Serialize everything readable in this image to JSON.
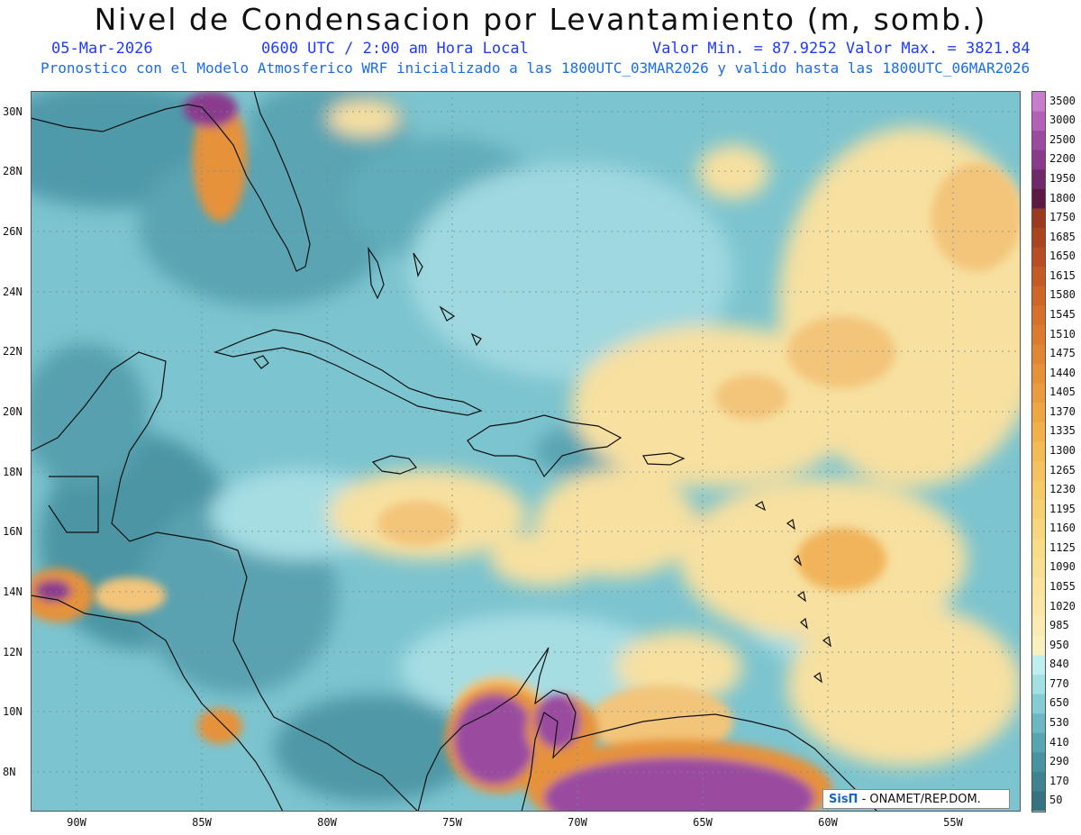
{
  "title": "Nivel de Condensacion por Levantamiento (m, somb.)",
  "date": "05-Mar-2026",
  "time": "0600 UTC / 2:00 am Hora Local",
  "minmax": "Valor Min. = 87.9252  Valor Max. = 3821.84",
  "forecast_note": "Pronostico con el Modelo Atmosferico WRF inicializado a las 1800UTC_03MAR2026 y valido hasta las  1800UTC_06MAR2026",
  "lat_labels": [
    "30N",
    "28N",
    "26N",
    "24N",
    "22N",
    "20N",
    "18N",
    "16N",
    "14N",
    "12N",
    "10N",
    "8N"
  ],
  "lon_labels": [
    "90W",
    "85W",
    "80W",
    "75W",
    "70W",
    "65W",
    "60W",
    "55W"
  ],
  "colorbar": {
    "labels": [
      "3500",
      "3000",
      "2500",
      "2200",
      "1950",
      "1800",
      "1750",
      "1685",
      "1650",
      "1615",
      "1580",
      "1545",
      "1510",
      "1475",
      "1440",
      "1405",
      "1370",
      "1335",
      "1300",
      "1265",
      "1230",
      "1195",
      "1160",
      "1125",
      "1090",
      "1055",
      "1020",
      "985",
      "950",
      "840",
      "770",
      "650",
      "530",
      "410",
      "290",
      "170",
      "50"
    ],
    "colors": [
      "#c77dcc",
      "#b261b7",
      "#9a4ba0",
      "#8a3a8c",
      "#6f2a6b",
      "#5a1a44",
      "#9b3a1f",
      "#a9441f",
      "#b84f22",
      "#c45a25",
      "#cf6527",
      "#d6702a",
      "#dc7b2e",
      "#e18632",
      "#e69137",
      "#ea9b3d",
      "#eea643",
      "#f1b04b",
      "#f3ba55",
      "#f5c25f",
      "#f6c969",
      "#f7d073",
      "#f8d67e",
      "#f9db88",
      "#f9df92",
      "#fae39c",
      "#fae7a7",
      "#fbebb2",
      "#f8f0be",
      "#bfeeee",
      "#a3e0e4",
      "#86ccd4",
      "#6bb8c4",
      "#56a5b3",
      "#4893a1",
      "#3f8391",
      "#36727f"
    ]
  },
  "credit": {
    "logo": "SisΠ",
    "text": "- ONAMET/REP.DOM."
  }
}
